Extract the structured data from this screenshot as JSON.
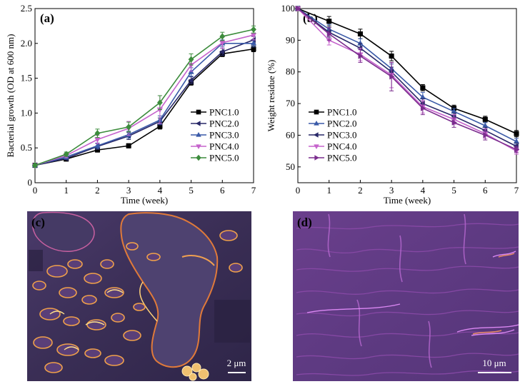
{
  "chart_data": [
    {
      "type": "line",
      "panel_label": "(a)",
      "xlabel": "Time (week)",
      "ylabel": "Bacterial growth (OD at 600 nm)",
      "xlim": [
        0,
        7
      ],
      "ylim": [
        0,
        2.5
      ],
      "x_ticks": [
        "0",
        "1",
        "2",
        "3",
        "4",
        "5",
        "6",
        "7"
      ],
      "y_ticks": [
        "0",
        "0.5",
        "1.0",
        "1.5",
        "2.0",
        "2.5"
      ],
      "x": [
        0,
        1,
        2,
        3,
        4,
        5,
        6,
        7
      ],
      "legend_position": "right",
      "series": [
        {
          "name": "PNC1.0",
          "marker": "square",
          "color": "#000000",
          "values": [
            0.25,
            0.34,
            0.47,
            0.53,
            0.81,
            1.44,
            1.85,
            1.92
          ],
          "errors": [
            0.02,
            0.02,
            0.03,
            0.03,
            0.04,
            0.04,
            0.04,
            0.04
          ]
        },
        {
          "name": "PNC2.0",
          "marker": "triangle-left",
          "color": "#282868",
          "values": [
            0.25,
            0.35,
            0.52,
            0.67,
            0.88,
            1.47,
            1.88,
            2.05
          ],
          "errors": [
            0.02,
            0.02,
            0.04,
            0.05,
            0.05,
            0.05,
            0.05,
            0.05
          ]
        },
        {
          "name": "PNC3.0",
          "marker": "triangle-up",
          "color": "#3a5aa8",
          "values": [
            0.25,
            0.37,
            0.53,
            0.69,
            0.9,
            1.59,
            2.0,
            2.0
          ],
          "errors": [
            0.02,
            0.03,
            0.04,
            0.05,
            0.06,
            0.06,
            0.05,
            0.05
          ]
        },
        {
          "name": "PNC4.0",
          "marker": "triangle-down",
          "color": "#c563cc",
          "values": [
            0.25,
            0.39,
            0.62,
            0.78,
            1.05,
            1.69,
            2.01,
            2.12
          ],
          "errors": [
            0.02,
            0.03,
            0.06,
            0.1,
            0.2,
            0.09,
            0.08,
            0.07
          ]
        },
        {
          "name": "PNC5.0",
          "marker": "diamond",
          "color": "#3c8c3c",
          "values": [
            0.25,
            0.41,
            0.71,
            0.8,
            1.15,
            1.77,
            2.1,
            2.2
          ],
          "errors": [
            0.02,
            0.03,
            0.06,
            0.07,
            0.1,
            0.08,
            0.06,
            0.05
          ]
        }
      ]
    },
    {
      "type": "line",
      "panel_label": "(b)",
      "xlabel": "Time (week)",
      "ylabel": "Weight residue (%)",
      "xlim": [
        0,
        7
      ],
      "ylim": [
        45,
        100
      ],
      "x_ticks": [
        "0",
        "1",
        "2",
        "3",
        "4",
        "5",
        "6",
        "7"
      ],
      "y_ticks": [
        "50",
        "60",
        "70",
        "80",
        "90",
        "100"
      ],
      "x": [
        0,
        1,
        2,
        3,
        4,
        5,
        6,
        7
      ],
      "legend_position": "right",
      "series": [
        {
          "name": "PNC1.0",
          "marker": "square",
          "color": "#000000",
          "values": [
            100,
            96,
            92,
            85,
            75,
            68.5,
            65,
            60.5
          ],
          "errors": [
            0,
            1.5,
            1.5,
            1.5,
            1.0,
            1.0,
            1.0,
            1.0
          ]
        },
        {
          "name": "PNC2.0",
          "marker": "triangle-up",
          "color": "#3a5aa8",
          "values": [
            100,
            93.5,
            89,
            81,
            72,
            67.5,
            63,
            58
          ],
          "errors": [
            0,
            1.5,
            1.5,
            1.5,
            1.5,
            1.0,
            1.0,
            1.0
          ]
        },
        {
          "name": "PNC3.0",
          "marker": "triangle-left",
          "color": "#282868",
          "values": [
            100,
            92.5,
            87.5,
            80,
            70,
            66,
            61.5,
            56.5
          ],
          "errors": [
            0,
            1.5,
            1.5,
            1.5,
            1.5,
            1.0,
            1.0,
            1.0
          ]
        },
        {
          "name": "PNC4.0",
          "marker": "triangle-down",
          "color": "#c563cc",
          "values": [
            100,
            90,
            85.5,
            79,
            69,
            65,
            60.5,
            55
          ],
          "errors": [
            0,
            1.5,
            2.0,
            4.0,
            2.0,
            1.5,
            1.5,
            1.0
          ]
        },
        {
          "name": "PNC5.0",
          "marker": "triangle-right",
          "color": "#7b2d8e",
          "values": [
            100,
            92,
            85,
            78.5,
            68.5,
            64,
            60,
            55.5
          ],
          "errors": [
            0,
            2.0,
            2.0,
            4.5,
            2.0,
            1.5,
            1.5,
            1.0
          ]
        }
      ]
    }
  ],
  "images": [
    {
      "panel_label": "(c)",
      "scale_bar": "2 μm"
    },
    {
      "panel_label": "(d)",
      "scale_bar": "10 μm"
    }
  ]
}
